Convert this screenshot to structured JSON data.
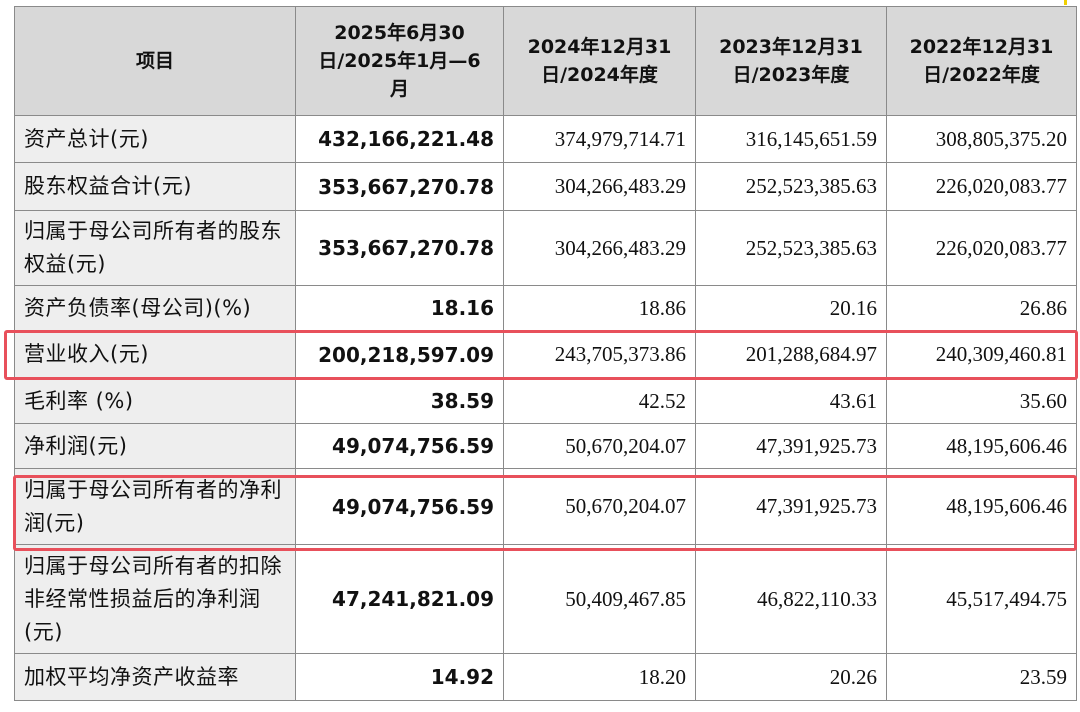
{
  "table": {
    "headers": [
      "项目",
      "2025年6月30日/2025年1月—6月",
      "2024年12月31日/2024年度",
      "2023年12月31日/2023年度",
      "2022年12月31日/2022年度"
    ],
    "rows": [
      {
        "label": "资产总计(元)",
        "values": [
          "432,166,221.48",
          "374,979,714.71",
          "316,145,651.59",
          "308,805,375.20"
        ]
      },
      {
        "label": "股东权益合计(元)",
        "values": [
          "353,667,270.78",
          "304,266,483.29",
          "252,523,385.63",
          "226,020,083.77"
        ]
      },
      {
        "label": "归属于母公司所有者的股东权益(元)",
        "values": [
          "353,667,270.78",
          "304,266,483.29",
          "252,523,385.63",
          "226,020,083.77"
        ]
      },
      {
        "label": "资产负债率(母公司)(%)",
        "values": [
          "18.16",
          "18.86",
          "20.16",
          "26.86"
        ]
      },
      {
        "label": "营业收入(元)",
        "values": [
          "200,218,597.09",
          "243,705,373.86",
          "201,288,684.97",
          "240,309,460.81"
        ]
      },
      {
        "label": "毛利率 (%)",
        "values": [
          "38.59",
          "42.52",
          "43.61",
          "35.60"
        ]
      },
      {
        "label": "净利润(元)",
        "values": [
          "49,074,756.59",
          "50,670,204.07",
          "47,391,925.73",
          "48,195,606.46"
        ]
      },
      {
        "label": "归属于母公司所有者的净利润(元)",
        "values": [
          "49,074,756.59",
          "50,670,204.07",
          "47,391,925.73",
          "48,195,606.46"
        ]
      },
      {
        "label": "归属于母公司所有者的扣除非经常性损益后的净利润(元)",
        "values": [
          "47,241,821.09",
          "50,409,467.85",
          "46,822,110.33",
          "45,517,494.75"
        ]
      },
      {
        "label": "加权平均净资产收益率",
        "values": [
          "14.92",
          "18.20",
          "20.26",
          "23.59"
        ]
      }
    ]
  },
  "highlights": {
    "color": "#e8505b",
    "rows": [
      "营业收入(元)",
      "归属于母公司所有者的净利润(元)"
    ]
  },
  "colors": {
    "header_bg": "#d8d8d8",
    "label_bg": "#eeeeee",
    "border": "#8a8a8a"
  }
}
